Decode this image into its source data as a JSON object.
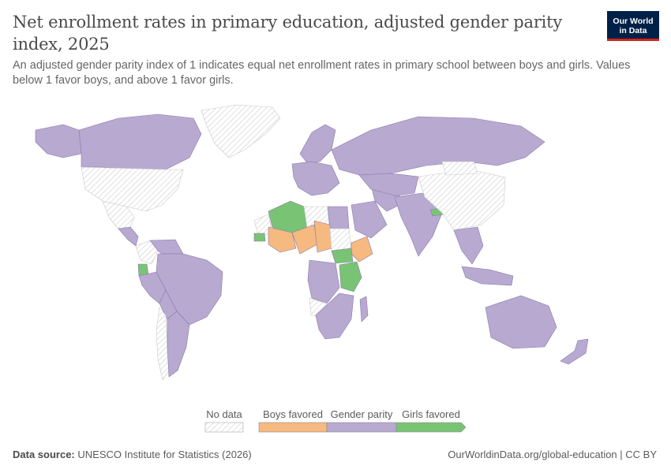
{
  "header": {
    "title": "Net enrollment rates in primary education, adjusted gender parity index, 2025",
    "subtitle": "An adjusted gender parity index of 1 indicates equal net enrollment rates in primary school between boys and girls. Values below 1 favor boys, and above 1 favor girls."
  },
  "logo": {
    "line1": "Our World",
    "line2": "in Data"
  },
  "colors": {
    "boys_favored": "#f6b97f",
    "gender_parity": "#b8a9d1",
    "girls_favored": "#79c474",
    "no_data": "#e4e4e4",
    "border": "#8a7aa8"
  },
  "legend": {
    "no_data": "No data",
    "boys_favored": "Boys favored",
    "gender_parity": "Gender parity",
    "girls_favored": "Girls favored"
  },
  "map_regions": [
    {
      "id": "greenland",
      "category": "no_data"
    },
    {
      "id": "canada",
      "category": "gender_parity"
    },
    {
      "id": "alaska",
      "category": "gender_parity"
    },
    {
      "id": "united-states",
      "category": "no_data"
    },
    {
      "id": "mexico",
      "category": "no_data"
    },
    {
      "id": "central-america",
      "category": "gender_parity"
    },
    {
      "id": "colombia",
      "category": "no_data"
    },
    {
      "id": "venezuela",
      "category": "gender_parity"
    },
    {
      "id": "ecuador",
      "category": "girls_favored"
    },
    {
      "id": "brazil",
      "category": "gender_parity"
    },
    {
      "id": "peru",
      "category": "gender_parity"
    },
    {
      "id": "bolivia",
      "category": "gender_parity"
    },
    {
      "id": "chile",
      "category": "no_data"
    },
    {
      "id": "argentina",
      "category": "gender_parity"
    },
    {
      "id": "scandinavia",
      "category": "gender_parity"
    },
    {
      "id": "western-europe",
      "category": "gender_parity"
    },
    {
      "id": "russia",
      "category": "gender_parity"
    },
    {
      "id": "algeria",
      "category": "girls_favored"
    },
    {
      "id": "libya",
      "category": "no_data"
    },
    {
      "id": "egypt",
      "category": "gender_parity"
    },
    {
      "id": "mauritania",
      "category": "no_data"
    },
    {
      "id": "mali",
      "category": "boys_favored"
    },
    {
      "id": "niger",
      "category": "boys_favored"
    },
    {
      "id": "chad",
      "category": "boys_favored"
    },
    {
      "id": "senegal",
      "category": "girls_favored"
    },
    {
      "id": "sudan",
      "category": "no_data"
    },
    {
      "id": "ethiopia",
      "category": "boys_favored"
    },
    {
      "id": "south-sudan",
      "category": "girls_favored"
    },
    {
      "id": "kenya-tanzania",
      "category": "girls_favored"
    },
    {
      "id": "drc",
      "category": "gender_parity"
    },
    {
      "id": "angola",
      "category": "no_data"
    },
    {
      "id": "southern-africa",
      "category": "gender_parity"
    },
    {
      "id": "madagascar",
      "category": "gender_parity"
    },
    {
      "id": "saudi-arabia",
      "category": "gender_parity"
    },
    {
      "id": "iran",
      "category": "gender_parity"
    },
    {
      "id": "central-asia",
      "category": "gender_parity"
    },
    {
      "id": "india",
      "category": "gender_parity"
    },
    {
      "id": "nepal",
      "category": "girls_favored"
    },
    {
      "id": "china",
      "category": "no_data"
    },
    {
      "id": "mongolia",
      "category": "no_data"
    },
    {
      "id": "southeast-asia",
      "category": "gender_parity"
    },
    {
      "id": "indonesia",
      "category": "gender_parity"
    },
    {
      "id": "australia",
      "category": "gender_parity"
    },
    {
      "id": "new-zealand",
      "category": "gender_parity"
    }
  ],
  "footer": {
    "source_label": "Data source:",
    "source_text": "UNESCO Institute for Statistics (2026)",
    "url": "OurWorldinData.org/global-education | CC BY"
  }
}
